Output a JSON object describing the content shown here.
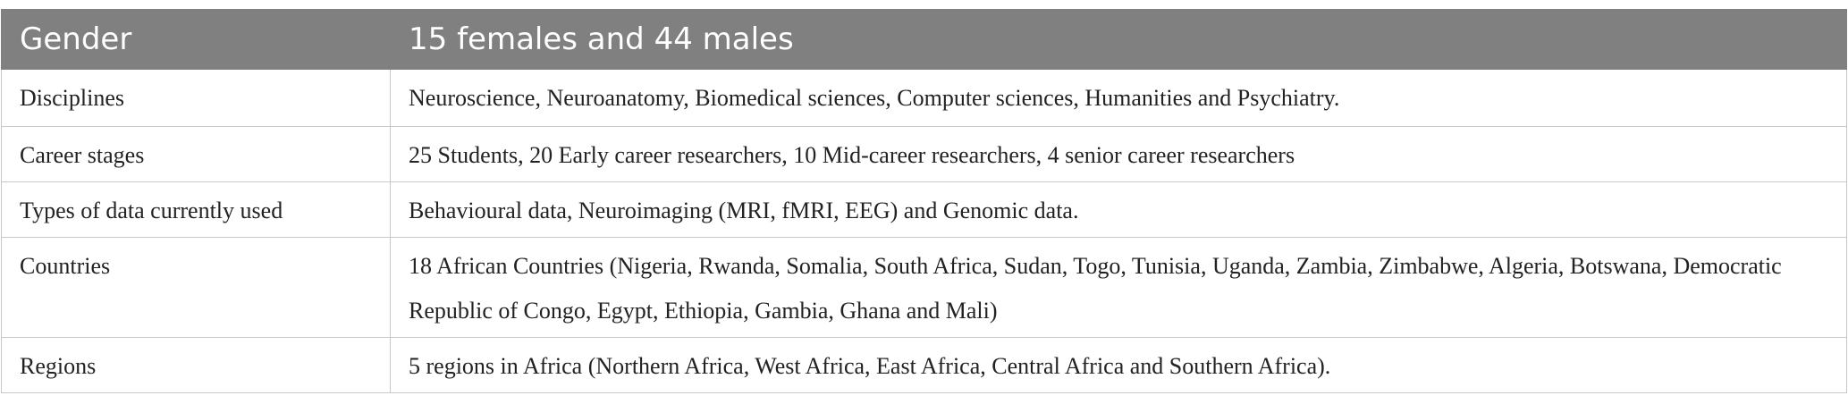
{
  "table": {
    "header": [
      "Gender",
      "15 females and 44 males"
    ],
    "rows": [
      [
        "Disciplines",
        "Neuroscience, Neuroanatomy, Biomedical sciences, Computer sciences, Humanities and Psychiatry."
      ],
      [
        "Career stages",
        "25 Students, 20 Early career researchers, 10 Mid-career researchers, 4 senior career researchers"
      ],
      [
        "Types of data currently used",
        "Behavioural data, Neuroimaging (MRI, fMRI, EEG) and Genomic data."
      ],
      [
        "Countries",
        "18 African Countries (Nigeria, Rwanda, Somalia, South Africa, Sudan, Togo, Tunisia, Uganda, Zambia, Zimbabwe, Algeria, Botswana, Democratic Republic of Congo, Egypt, Ethiopia, Gambia, Ghana and Mali)"
      ],
      [
        "Regions",
        "5 regions in Africa (Northern Africa, West Africa, East Africa, Central Africa and Southern Africa)."
      ]
    ]
  }
}
